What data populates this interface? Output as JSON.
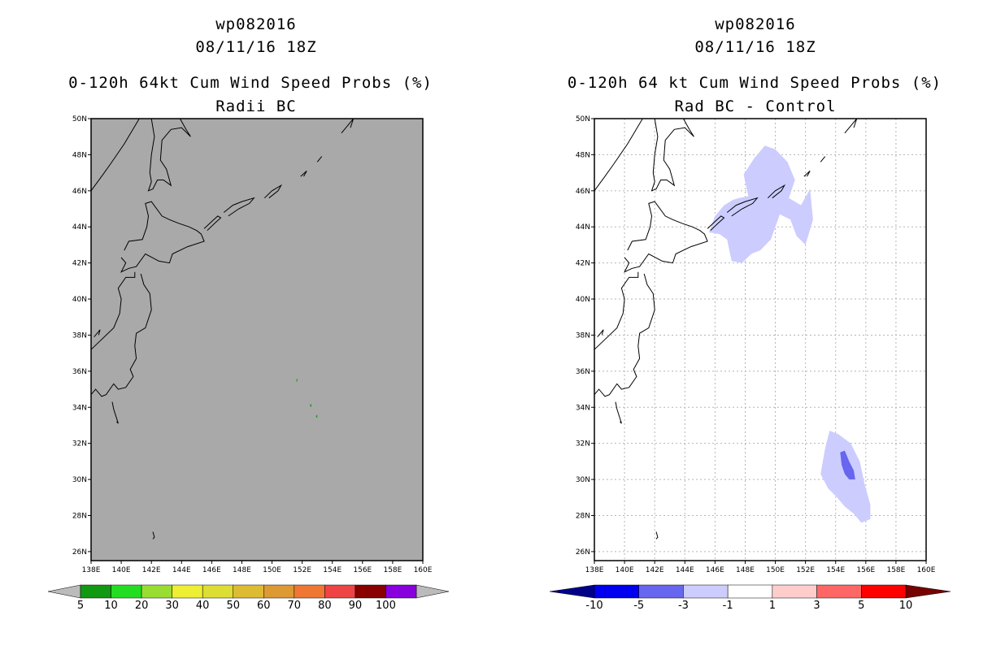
{
  "panels": [
    {
      "id": "left",
      "storm_id": "wp082016",
      "datetime": "08/11/16 18Z",
      "title_line1": "0-120h 64kt Cum Wind Speed Probs (%)",
      "title_line2": "Radii BC",
      "background_color": "#a9a9a9",
      "gridlines": false
    },
    {
      "id": "right",
      "storm_id": "wp082016",
      "datetime": "08/11/16 18Z",
      "title_line1": "0-120h 64 kt Cum Wind Speed Probs (%)",
      "title_line2": "Rad BC - Control",
      "background_color": "#ffffff",
      "gridlines": true
    }
  ],
  "axes": {
    "lon_labels": [
      "138E",
      "140E",
      "142E",
      "144E",
      "146E",
      "148E",
      "150E",
      "152E",
      "154E",
      "156E",
      "158E",
      "160E"
    ],
    "lat_labels": [
      "26N",
      "28N",
      "30N",
      "32N",
      "34N",
      "36N",
      "38N",
      "40N",
      "42N",
      "44N",
      "46N",
      "48N",
      "50N"
    ],
    "lon_range": [
      138,
      160
    ],
    "lat_range": [
      25.5,
      50
    ]
  },
  "colorbars": {
    "left": {
      "labels": [
        "5",
        "10",
        "20",
        "30",
        "40",
        "50",
        "60",
        "70",
        "80",
        "90",
        "100"
      ],
      "colors": [
        "#119911",
        "#22dd22",
        "#99dd33",
        "#eeee33",
        "#dddd33",
        "#ddbb33",
        "#dd9933",
        "#ee7733",
        "#ee4444",
        "#880000",
        "#8800dd"
      ],
      "end_color": "#bbbbbb"
    },
    "right": {
      "labels": [
        "-10",
        "-5",
        "-3",
        "-1",
        "1",
        "3",
        "5",
        "10"
      ],
      "colors": [
        "#0000ee",
        "#6666ee",
        "#ccccff",
        "#ffffff",
        "#ffcccc",
        "#ff6666",
        "#ff0000"
      ],
      "low_end_color": "#000088",
      "high_end_color": "#770000"
    }
  },
  "map_features": {
    "left_prob_areas": [
      {
        "name": "green-speck-1",
        "color": "#119911",
        "points": [
          [
            151.6,
            35.4
          ],
          [
            151.7,
            35.5
          ],
          [
            151.65,
            35.6
          ]
        ]
      },
      {
        "name": "green-speck-2",
        "color": "#119911",
        "points": [
          [
            152.5,
            34.1
          ],
          [
            152.6,
            34.0
          ],
          [
            152.6,
            34.2
          ]
        ]
      },
      {
        "name": "green-speck-3",
        "color": "#119911",
        "points": [
          [
            152.9,
            33.5
          ],
          [
            153.0,
            33.4
          ],
          [
            153.0,
            33.6
          ]
        ]
      }
    ],
    "right_diff_areas": [
      {
        "name": "kuril-diff-area",
        "color": "#ccccff",
        "points": [
          [
            145.6,
            43.7
          ],
          [
            146.0,
            44.6
          ],
          [
            146.6,
            45.2
          ],
          [
            147.2,
            45.5
          ],
          [
            147.6,
            45.6
          ],
          [
            148.2,
            45.7
          ],
          [
            147.9,
            46.9
          ],
          [
            148.6,
            47.8
          ],
          [
            149.3,
            48.5
          ],
          [
            150.0,
            48.3
          ],
          [
            150.8,
            47.6
          ],
          [
            151.3,
            46.6
          ],
          [
            150.9,
            45.6
          ],
          [
            151.7,
            45.2
          ],
          [
            152.3,
            46.1
          ],
          [
            152.5,
            44.4
          ],
          [
            152.0,
            43.0
          ],
          [
            151.4,
            43.5
          ],
          [
            151.0,
            44.4
          ],
          [
            150.3,
            44.7
          ],
          [
            149.7,
            43.3
          ],
          [
            149.0,
            42.7
          ],
          [
            148.4,
            42.5
          ],
          [
            147.8,
            42.0
          ],
          [
            147.1,
            42.1
          ],
          [
            146.8,
            43.3
          ],
          [
            146.3,
            43.6
          ]
        ]
      },
      {
        "name": "southern-diff-area",
        "color": "#ccccff",
        "points": [
          [
            153.0,
            30.3
          ],
          [
            153.3,
            31.7
          ],
          [
            153.6,
            32.7
          ],
          [
            154.2,
            32.5
          ],
          [
            155.0,
            32.0
          ],
          [
            155.6,
            31.0
          ],
          [
            155.9,
            29.8
          ],
          [
            156.3,
            28.6
          ],
          [
            156.3,
            27.8
          ],
          [
            155.7,
            27.6
          ],
          [
            155.2,
            28.1
          ],
          [
            154.6,
            28.5
          ],
          [
            154.1,
            29.0
          ],
          [
            153.5,
            29.5
          ]
        ]
      },
      {
        "name": "southern-diff-core",
        "color": "#6666ee",
        "points": [
          [
            154.3,
            31.5
          ],
          [
            154.6,
            31.6
          ],
          [
            154.9,
            31.0
          ],
          [
            155.2,
            30.5
          ],
          [
            155.3,
            30.0
          ],
          [
            154.9,
            30.0
          ],
          [
            154.6,
            30.3
          ],
          [
            154.4,
            30.8
          ]
        ]
      }
    ],
    "coastlines": [
      {
        "name": "sakhalin-coast",
        "points": [
          [
            138.0,
            46.0
          ],
          [
            138.7,
            46.8
          ],
          [
            139.3,
            47.5
          ],
          [
            140.2,
            48.6
          ],
          [
            140.7,
            49.3
          ],
          [
            141.2,
            50.0
          ]
        ]
      },
      {
        "name": "sakhalin-island",
        "points": [
          [
            142.0,
            50.0
          ],
          [
            142.2,
            49.0
          ],
          [
            142.0,
            48.0
          ],
          [
            141.9,
            47.0
          ],
          [
            142.0,
            46.5
          ],
          [
            141.8,
            46.0
          ],
          [
            142.1,
            46.1
          ],
          [
            142.4,
            46.6
          ],
          [
            142.8,
            46.6
          ],
          [
            143.3,
            46.3
          ],
          [
            143.0,
            47.2
          ],
          [
            142.6,
            47.7
          ],
          [
            142.7,
            48.8
          ],
          [
            143.3,
            49.4
          ],
          [
            144.0,
            49.5
          ],
          [
            144.6,
            49.0
          ],
          [
            144.3,
            49.4
          ],
          [
            143.9,
            50.0
          ]
        ]
      },
      {
        "name": "hokkaido",
        "points": [
          [
            140.0,
            42.3
          ],
          [
            140.3,
            42.0
          ],
          [
            140.0,
            41.5
          ],
          [
            140.5,
            41.7
          ],
          [
            141.0,
            41.8
          ],
          [
            141.6,
            42.5
          ],
          [
            142.5,
            42.1
          ],
          [
            143.2,
            42.0
          ],
          [
            143.4,
            42.5
          ],
          [
            144.4,
            42.9
          ],
          [
            145.5,
            43.2
          ],
          [
            145.3,
            43.6
          ],
          [
            145.0,
            43.8
          ],
          [
            144.5,
            44.0
          ],
          [
            143.8,
            44.2
          ],
          [
            143.2,
            44.4
          ],
          [
            142.7,
            44.6
          ],
          [
            142.0,
            45.4
          ],
          [
            141.6,
            45.3
          ],
          [
            141.8,
            44.6
          ],
          [
            141.7,
            44.0
          ],
          [
            141.4,
            43.3
          ],
          [
            140.5,
            43.2
          ],
          [
            140.2,
            42.7
          ]
        ]
      },
      {
        "name": "honshu",
        "points": [
          [
            141.3,
            41.4
          ],
          [
            141.5,
            40.8
          ],
          [
            141.9,
            40.3
          ],
          [
            142.0,
            39.4
          ],
          [
            141.6,
            38.4
          ],
          [
            141.0,
            38.1
          ],
          [
            140.9,
            37.4
          ],
          [
            141.0,
            36.7
          ],
          [
            140.6,
            36.1
          ],
          [
            140.8,
            35.7
          ],
          [
            140.3,
            35.1
          ],
          [
            139.8,
            35.0
          ],
          [
            139.5,
            35.3
          ],
          [
            139.0,
            34.7
          ],
          [
            138.7,
            34.6
          ],
          [
            138.3,
            35.0
          ],
          [
            138.0,
            34.7
          ],
          [
            138.0,
            37.2
          ],
          [
            138.5,
            37.6
          ],
          [
            139.5,
            38.4
          ],
          [
            139.9,
            39.2
          ],
          [
            140.0,
            40.0
          ],
          [
            139.8,
            40.6
          ],
          [
            140.3,
            41.2
          ],
          [
            140.9,
            41.2
          ],
          [
            140.9,
            41.5
          ]
        ]
      },
      {
        "name": "kuril-kunashir",
        "points": [
          [
            145.5,
            43.9
          ],
          [
            146.0,
            44.3
          ],
          [
            146.4,
            44.6
          ],
          [
            146.6,
            44.5
          ],
          [
            146.2,
            44.2
          ],
          [
            145.7,
            43.8
          ]
        ]
      },
      {
        "name": "kuril-iturup",
        "points": [
          [
            146.8,
            44.8
          ],
          [
            147.4,
            45.2
          ],
          [
            148.0,
            45.4
          ],
          [
            148.8,
            45.6
          ],
          [
            148.5,
            45.3
          ],
          [
            147.8,
            45.0
          ],
          [
            147.1,
            44.6
          ]
        ]
      },
      {
        "name": "kuril-urup",
        "points": [
          [
            149.5,
            45.6
          ],
          [
            150.0,
            46.0
          ],
          [
            150.6,
            46.3
          ],
          [
            150.4,
            46.0
          ],
          [
            149.8,
            45.6
          ]
        ]
      },
      {
        "name": "kuril-simushir",
        "points": [
          [
            151.9,
            46.8
          ],
          [
            152.3,
            47.1
          ],
          [
            152.1,
            46.8
          ]
        ]
      },
      {
        "name": "kuril-matua",
        "points": [
          [
            153.0,
            47.6
          ],
          [
            153.2,
            47.8
          ],
          [
            153.3,
            47.9
          ]
        ]
      },
      {
        "name": "kuril-north",
        "points": [
          [
            154.6,
            49.2
          ],
          [
            155.0,
            49.6
          ],
          [
            155.4,
            50.0
          ],
          [
            155.2,
            49.5
          ]
        ]
      },
      {
        "name": "sado-island",
        "points": [
          [
            138.2,
            37.9
          ],
          [
            138.6,
            38.3
          ],
          [
            138.5,
            38.0
          ]
        ]
      },
      {
        "name": "izu-islands",
        "points": [
          [
            139.4,
            34.3
          ],
          [
            139.5,
            33.9
          ],
          [
            139.8,
            33.1
          ],
          [
            139.7,
            33.2
          ]
        ]
      },
      {
        "name": "ogasawara",
        "points": [
          [
            142.1,
            27.1
          ],
          [
            142.2,
            26.8
          ],
          [
            142.1,
            26.7
          ]
        ]
      }
    ]
  }
}
